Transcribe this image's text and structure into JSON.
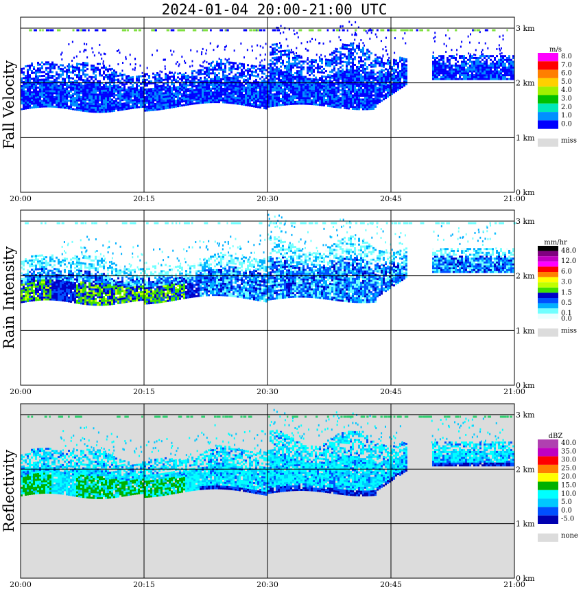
{
  "title": "2024-01-04   20:00-21:00 UTC",
  "chart_data": [
    {
      "type": "heatmap",
      "name": "fall-velocity",
      "ylabel": "Fall Velocity",
      "x_ticks": [
        "20:00",
        "20:15",
        "20:30",
        "20:45",
        "21:00"
      ],
      "y_ticks": [
        "0 km",
        "1 km",
        "2 km",
        "3 km"
      ],
      "ylim": [
        0,
        3.2
      ],
      "legend": {
        "unit": "m/s",
        "labels": [
          "8.0",
          "7.0",
          "6.0",
          "5.0",
          "4.0",
          "3.0",
          "2.0",
          "1.0",
          "0.0"
        ],
        "colors": [
          "#ff00ff",
          "#ff0000",
          "#ff7f00",
          "#ffd000",
          "#a0f000",
          "#00c000",
          "#00e8b8",
          "#0090ff",
          "#0000ff"
        ],
        "miss_label": "miss",
        "miss_color": "#dcdcdc"
      },
      "background": "#ffffff"
    },
    {
      "type": "heatmap",
      "name": "rain-intensity",
      "ylabel": "Rain Intensity",
      "x_ticks": [
        "20:00",
        "20:15",
        "20:30",
        "20:45",
        "21:00"
      ],
      "y_ticks": [
        "0 km",
        "1 km",
        "2 km",
        "3 km"
      ],
      "ylim": [
        0,
        3.2
      ],
      "legend": {
        "unit": "mm/hr",
        "labels": [
          "48.0",
          "12.0",
          "6.0",
          "3.0",
          "1.5",
          "0.5",
          "0.1",
          "0.0"
        ],
        "label_rows": [
          0,
          2,
          4,
          6,
          8,
          10,
          12,
          13
        ],
        "colors": [
          "#000000",
          "#800080",
          "#c000c0",
          "#ff00ff",
          "#ff0000",
          "#ff8000",
          "#ffff00",
          "#c0ff00",
          "#40e000",
          "#0000c8",
          "#0050ff",
          "#00b0ff",
          "#70ffff",
          "#e8ffff"
        ],
        "miss_label": "miss",
        "miss_color": "#dcdcdc"
      },
      "background": "#ffffff"
    },
    {
      "type": "heatmap",
      "name": "reflectivity",
      "ylabel": "Reflectivity",
      "x_ticks": [
        "20:00",
        "20:15",
        "20:30",
        "20:45",
        "21:00"
      ],
      "y_ticks": [
        "0 km",
        "1 km",
        "2 km",
        "3 km"
      ],
      "ylim": [
        0,
        3.2
      ],
      "legend": {
        "unit": "dBZ",
        "labels": [
          "40.0",
          "35.0",
          "30.0",
          "25.0",
          "20.0",
          "15.0",
          "10.0",
          "5.0",
          "0.0",
          "-5.0"
        ],
        "colors": [
          "#b040b0",
          "#c000c0",
          "#ff0000",
          "#ff8000",
          "#ffff00",
          "#00b000",
          "#00ffff",
          "#00c8ff",
          "#0050ff",
          "#0000b0"
        ],
        "miss_label": "none",
        "miss_color": "#dcdcdc"
      },
      "background": "#dcdcdc"
    }
  ]
}
